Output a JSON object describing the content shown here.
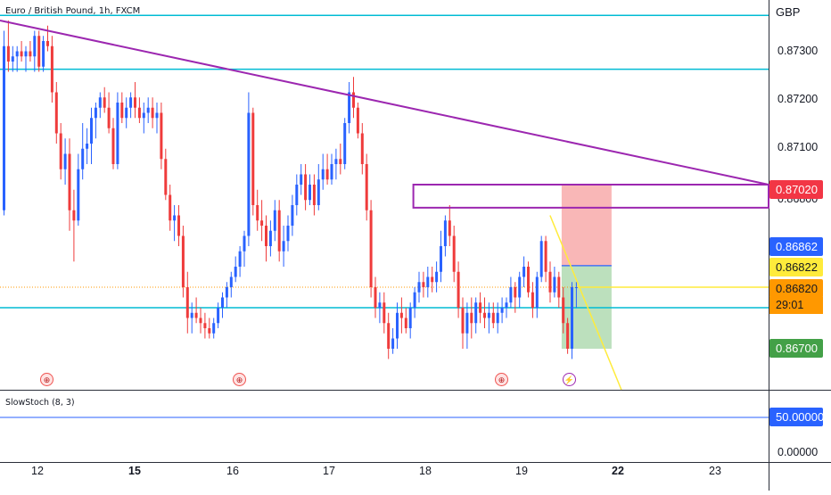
{
  "header": {
    "symbol_title": "Euro / British Pound, 1h, FXCM",
    "currency": "GBP"
  },
  "indicator": {
    "title": "SlowStoch (8, 3)",
    "level_label": "50.00000",
    "zero_label": "0.00000"
  },
  "price_axis": {
    "ticks": [
      "0.87300",
      "0.87200",
      "0.87100",
      "0.86800"
    ]
  },
  "time_axis": {
    "ticks": [
      "12",
      "15",
      "16",
      "17",
      "18",
      "19",
      "22",
      "23"
    ],
    "bold": [
      false,
      true,
      false,
      false,
      false,
      false,
      true,
      false
    ]
  },
  "price_tags": {
    "trendline": {
      "label": "0.87020",
      "color": "#f23645"
    },
    "blue_level": {
      "label": "0.86862",
      "color": "#2962ff"
    },
    "yellow_level": {
      "label": "0.86822",
      "color": "#ffeb3b"
    },
    "last_price": {
      "label": "0.86820",
      "color": "#ff9800"
    },
    "countdown": "29:01",
    "target": {
      "label": "0.86700",
      "color": "#43a047"
    }
  },
  "events": [
    {
      "icon": "flag-icon",
      "glyph": "⊕"
    },
    {
      "icon": "flag-icon",
      "glyph": "⊕"
    },
    {
      "icon": "flag-icon",
      "glyph": "⊕"
    },
    {
      "icon": "flash-icon",
      "glyph": "⚡"
    }
  ],
  "colors": {
    "candle_up": "#2962ff",
    "candle_down": "#ef3b3b",
    "horizontal_lines": "#00bcd4",
    "trendline": "#9c27b0",
    "rectangle": "#9c27b0",
    "stop_zone": "#f8a5a5",
    "target_zone": "#a5d6a7",
    "forecast_line": "#ffeb3b"
  },
  "chart_data": {
    "type": "candlestick",
    "symbol": "EURGBP",
    "interval": "1h",
    "y_range": [
      0.8662,
      0.8738
    ],
    "candles": [
      [
        0.8697,
        0.8732,
        0.8696,
        0.8729
      ],
      [
        0.8729,
        0.8734,
        0.8724,
        0.8726
      ],
      [
        0.8726,
        0.8729,
        0.8724,
        0.8727
      ],
      [
        0.8727,
        0.8729,
        0.8724,
        0.8728
      ],
      [
        0.8728,
        0.873,
        0.8726,
        0.8727
      ],
      [
        0.8727,
        0.8729,
        0.8724,
        0.8728
      ],
      [
        0.8728,
        0.873,
        0.8726,
        0.8727
      ],
      [
        0.8727,
        0.8732,
        0.8724,
        0.8731
      ],
      [
        0.8731,
        0.8732,
        0.8724,
        0.8725
      ],
      [
        0.8725,
        0.8731,
        0.8724,
        0.873
      ],
      [
        0.873,
        0.8733,
        0.8728,
        0.8729
      ],
      [
        0.8729,
        0.8731,
        0.8718,
        0.872
      ],
      [
        0.872,
        0.8722,
        0.871,
        0.8712
      ],
      [
        0.8712,
        0.8714,
        0.8703,
        0.8705
      ],
      [
        0.8705,
        0.8711,
        0.8702,
        0.8708
      ],
      [
        0.8708,
        0.8711,
        0.8693,
        0.8697
      ],
      [
        0.8697,
        0.8701,
        0.8687,
        0.8695
      ],
      [
        0.8695,
        0.8708,
        0.8694,
        0.8705
      ],
      [
        0.8705,
        0.8714,
        0.8703,
        0.8709
      ],
      [
        0.8709,
        0.8713,
        0.8706,
        0.871
      ],
      [
        0.871,
        0.8717,
        0.8706,
        0.8715
      ],
      [
        0.8715,
        0.8718,
        0.8711,
        0.8717
      ],
      [
        0.8717,
        0.872,
        0.8715,
        0.8719
      ],
      [
        0.8719,
        0.8721,
        0.8716,
        0.8717
      ],
      [
        0.8717,
        0.872,
        0.8712,
        0.8713
      ],
      [
        0.8713,
        0.8715,
        0.8705,
        0.8706
      ],
      [
        0.8706,
        0.872,
        0.8705,
        0.8718
      ],
      [
        0.8718,
        0.872,
        0.8714,
        0.8715
      ],
      [
        0.8715,
        0.8719,
        0.8713,
        0.8717
      ],
      [
        0.8717,
        0.872,
        0.8715,
        0.8719
      ],
      [
        0.8719,
        0.8722,
        0.8715,
        0.8717
      ],
      [
        0.8717,
        0.8719,
        0.8714,
        0.8715
      ],
      [
        0.8715,
        0.8718,
        0.8712,
        0.8716
      ],
      [
        0.8716,
        0.8719,
        0.8714,
        0.8717
      ],
      [
        0.8717,
        0.8719,
        0.8713,
        0.8715
      ],
      [
        0.8715,
        0.8718,
        0.8712,
        0.8716
      ],
      [
        0.8716,
        0.8718,
        0.8705,
        0.8707
      ],
      [
        0.8707,
        0.8709,
        0.8699,
        0.87
      ],
      [
        0.87,
        0.8702,
        0.8693,
        0.8695
      ],
      [
        0.8695,
        0.8698,
        0.8691,
        0.8696
      ],
      [
        0.8696,
        0.8698,
        0.869,
        0.8692
      ],
      [
        0.8692,
        0.8694,
        0.868,
        0.8682
      ],
      [
        0.8682,
        0.8685,
        0.8673,
        0.8676
      ],
      [
        0.8676,
        0.8679,
        0.8673,
        0.8677
      ],
      [
        0.8677,
        0.868,
        0.8675,
        0.8676
      ],
      [
        0.8676,
        0.8678,
        0.8673,
        0.8675
      ],
      [
        0.8675,
        0.8677,
        0.8672,
        0.8674
      ],
      [
        0.8674,
        0.8676,
        0.8672,
        0.8673
      ],
      [
        0.8673,
        0.8676,
        0.8672,
        0.8675
      ],
      [
        0.8675,
        0.8679,
        0.8674,
        0.8678
      ],
      [
        0.8678,
        0.8681,
        0.8676,
        0.868
      ],
      [
        0.868,
        0.8683,
        0.8678,
        0.8682
      ],
      [
        0.8682,
        0.8685,
        0.868,
        0.8684
      ],
      [
        0.8684,
        0.8688,
        0.8683,
        0.8686
      ],
      [
        0.8686,
        0.869,
        0.8684,
        0.8689
      ],
      [
        0.8689,
        0.8693,
        0.8686,
        0.8692
      ],
      [
        0.8692,
        0.872,
        0.869,
        0.8716
      ],
      [
        0.8716,
        0.8717,
        0.8696,
        0.8698
      ],
      [
        0.8698,
        0.8701,
        0.8693,
        0.8695
      ],
      [
        0.8695,
        0.8699,
        0.8691,
        0.8694
      ],
      [
        0.8694,
        0.8696,
        0.8687,
        0.869
      ],
      [
        0.869,
        0.8695,
        0.8688,
        0.8693
      ],
      [
        0.8693,
        0.8699,
        0.8691,
        0.8697
      ],
      [
        0.8697,
        0.8699,
        0.8687,
        0.8689
      ],
      [
        0.8689,
        0.8694,
        0.8686,
        0.8691
      ],
      [
        0.8691,
        0.8696,
        0.8689,
        0.8694
      ],
      [
        0.8694,
        0.87,
        0.8692,
        0.8698
      ],
      [
        0.8698,
        0.8704,
        0.8696,
        0.8702
      ],
      [
        0.8702,
        0.8706,
        0.87,
        0.8704
      ],
      [
        0.8704,
        0.8706,
        0.8697,
        0.8699
      ],
      [
        0.8699,
        0.8704,
        0.8698,
        0.8702
      ],
      [
        0.8702,
        0.8704,
        0.8696,
        0.8698
      ],
      [
        0.8698,
        0.8706,
        0.8697,
        0.8703
      ],
      [
        0.8703,
        0.8708,
        0.8701,
        0.8705
      ],
      [
        0.8705,
        0.8708,
        0.8702,
        0.8703
      ],
      [
        0.8703,
        0.8708,
        0.8702,
        0.8706
      ],
      [
        0.8706,
        0.8709,
        0.8703,
        0.8707
      ],
      [
        0.8707,
        0.871,
        0.8704,
        0.8706
      ],
      [
        0.8706,
        0.8715,
        0.8705,
        0.8714
      ],
      [
        0.8714,
        0.8722,
        0.8712,
        0.872
      ],
      [
        0.872,
        0.8723,
        0.8715,
        0.8717
      ],
      [
        0.8717,
        0.8718,
        0.8711,
        0.8712
      ],
      [
        0.8712,
        0.8714,
        0.8704,
        0.8706
      ],
      [
        0.8706,
        0.8708,
        0.8695,
        0.8697
      ],
      [
        0.8697,
        0.8699,
        0.868,
        0.8682
      ],
      [
        0.8682,
        0.8684,
        0.8676,
        0.8678
      ],
      [
        0.8678,
        0.8681,
        0.8675,
        0.8679
      ],
      [
        0.8679,
        0.8681,
        0.8673,
        0.8675
      ],
      [
        0.8675,
        0.8677,
        0.8668,
        0.867
      ],
      [
        0.867,
        0.8674,
        0.8669,
        0.8672
      ],
      [
        0.8672,
        0.8679,
        0.867,
        0.8677
      ],
      [
        0.8677,
        0.868,
        0.8673,
        0.8676
      ],
      [
        0.8676,
        0.8678,
        0.8673,
        0.8674
      ],
      [
        0.8674,
        0.8679,
        0.8672,
        0.8678
      ],
      [
        0.8678,
        0.8682,
        0.8676,
        0.8681
      ],
      [
        0.8681,
        0.8685,
        0.8679,
        0.8683
      ],
      [
        0.8683,
        0.8685,
        0.868,
        0.8682
      ],
      [
        0.8682,
        0.8686,
        0.868,
        0.8684
      ],
      [
        0.8684,
        0.8686,
        0.8681,
        0.8683
      ],
      [
        0.8683,
        0.8687,
        0.8681,
        0.8685
      ],
      [
        0.8685,
        0.8693,
        0.8683,
        0.869
      ],
      [
        0.869,
        0.8696,
        0.8688,
        0.8695
      ],
      [
        0.8695,
        0.8698,
        0.869,
        0.8692
      ],
      [
        0.8692,
        0.8694,
        0.8683,
        0.8685
      ],
      [
        0.8685,
        0.8687,
        0.8676,
        0.8678
      ],
      [
        0.8678,
        0.868,
        0.867,
        0.8673
      ],
      [
        0.8673,
        0.8679,
        0.867,
        0.8677
      ],
      [
        0.8677,
        0.868,
        0.8672,
        0.8675
      ],
      [
        0.8675,
        0.868,
        0.8673,
        0.8679
      ],
      [
        0.8679,
        0.8681,
        0.8675,
        0.8677
      ],
      [
        0.8677,
        0.868,
        0.8674,
        0.8676
      ],
      [
        0.8676,
        0.8679,
        0.8673,
        0.8677
      ],
      [
        0.8677,
        0.8679,
        0.8674,
        0.8675
      ],
      [
        0.8675,
        0.8679,
        0.8673,
        0.8677
      ],
      [
        0.8677,
        0.868,
        0.8675,
        0.8678
      ],
      [
        0.8678,
        0.868,
        0.8676,
        0.8679
      ],
      [
        0.8679,
        0.8684,
        0.8678,
        0.8682
      ],
      [
        0.8682,
        0.8683,
        0.8677,
        0.868
      ],
      [
        0.868,
        0.8685,
        0.8678,
        0.8684
      ],
      [
        0.8684,
        0.8688,
        0.8682,
        0.8686
      ],
      [
        0.8686,
        0.8687,
        0.868,
        0.8681
      ],
      [
        0.8681,
        0.8683,
        0.8676,
        0.8678
      ],
      [
        0.8678,
        0.8685,
        0.8676,
        0.8684
      ],
      [
        0.8684,
        0.8692,
        0.8683,
        0.8691
      ],
      [
        0.8691,
        0.8692,
        0.8683,
        0.8685
      ],
      [
        0.8685,
        0.8687,
        0.8679,
        0.8681
      ],
      [
        0.8681,
        0.8686,
        0.868,
        0.8684
      ],
      [
        0.8684,
        0.8685,
        0.8678,
        0.868
      ],
      [
        0.868,
        0.8682,
        0.8673,
        0.8675
      ],
      [
        0.8675,
        0.8676,
        0.8669,
        0.867
      ],
      [
        0.867,
        0.8683,
        0.8668,
        0.8682
      ],
      [
        0.8682,
        0.8683,
        0.8678,
        0.8682
      ]
    ],
    "horizontal_levels": [
      0.8735,
      0.87245,
      0.8678
    ],
    "trendline": {
      "start_price": 0.8734,
      "current_price": 0.8702
    },
    "rectangle": {
      "price_top": 0.8702,
      "price_bottom": 0.86975
    },
    "position": {
      "entry": 0.86862,
      "stop": 0.8702,
      "target": 0.867
    },
    "last_price": 0.8682,
    "stochastic_level": 50
  }
}
